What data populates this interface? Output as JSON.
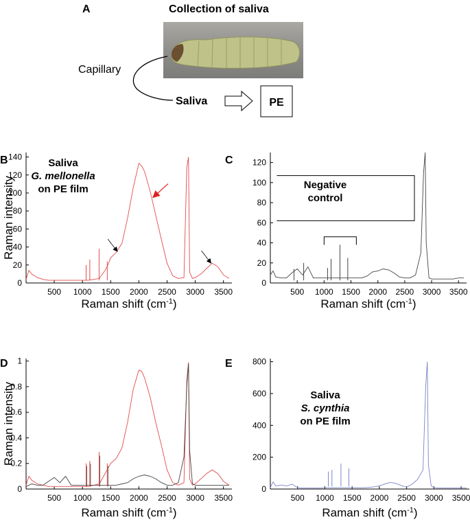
{
  "panel_a": {
    "letter": "A",
    "title": "Collection of saliva",
    "capillary_label": "Capillary",
    "saliva_label": "Saliva",
    "pe_label": "PE",
    "larva_image": "larva-photo"
  },
  "chart_data": [
    {
      "panel": "B",
      "type": "line",
      "ylabel": "Raman intensity",
      "xlabel": "Raman shift (cm",
      "xlabel_sup": "-1",
      "xlabel_end": ")",
      "xlim": [
        0,
        3650
      ],
      "ylim": [
        0,
        145
      ],
      "xticks": [
        500,
        1000,
        1500,
        2000,
        2500,
        3000,
        3500
      ],
      "yticks": [
        0,
        20,
        40,
        60,
        80,
        100,
        120,
        140
      ],
      "annotation": [
        "Saliva",
        "G. mellonella",
        "on PE film"
      ],
      "series": [
        {
          "color": "#e34a4a",
          "x": [
            0,
            50,
            100,
            200,
            300,
            400,
            500,
            600,
            700,
            800,
            900,
            1000,
            1100,
            1200,
            1300,
            1400,
            1450,
            1500,
            1600,
            1700,
            1800,
            1900,
            2000,
            2050,
            2100,
            2200,
            2300,
            2400,
            2500,
            2600,
            2700,
            2800,
            2850,
            2880,
            2900,
            2950,
            3000,
            3100,
            3200,
            3300,
            3400,
            3500,
            3600
          ],
          "y": [
            4,
            14,
            10,
            6,
            4,
            3,
            3,
            3,
            3,
            3,
            3,
            3,
            3,
            4,
            5,
            14,
            20,
            28,
            34,
            44,
            72,
            106,
            133,
            130,
            124,
            102,
            75,
            48,
            22,
            8,
            5,
            6,
            128,
            140,
            12,
            5,
            6,
            10,
            16,
            22,
            18,
            9,
            5
          ]
        }
      ],
      "peaks": [
        {
          "x": 1065,
          "y": 20
        },
        {
          "x": 1130,
          "y": 26
        },
        {
          "x": 1295,
          "y": 38
        },
        {
          "x": 1440,
          "y": 24
        }
      ],
      "arrows": [
        {
          "color": "red",
          "tip_x": 2250,
          "tip_y": 95
        },
        {
          "color": "black",
          "tip_x": 1620,
          "tip_y": 35
        },
        {
          "color": "black",
          "tip_x": 3280,
          "tip_y": 22
        }
      ]
    },
    {
      "panel": "C",
      "type": "line",
      "xlabel": "Raman shift (cm",
      "xlabel_sup": "-1",
      "xlabel_end": ")",
      "xlim": [
        0,
        3650
      ],
      "ylim": [
        0,
        130
      ],
      "xticks": [
        500,
        1000,
        1500,
        2000,
        2500,
        3000,
        3500
      ],
      "yticks": [
        0,
        20,
        40,
        60,
        80,
        100,
        120
      ],
      "annotation": [
        "Negative",
        "control"
      ],
      "series": [
        {
          "color": "#444444",
          "x": [
            0,
            50,
            100,
            200,
            300,
            400,
            500,
            600,
            700,
            800,
            900,
            1000,
            1100,
            1200,
            1300,
            1400,
            1500,
            1600,
            1700,
            1800,
            1900,
            2000,
            2100,
            2200,
            2300,
            2400,
            2500,
            2600,
            2700,
            2800,
            2850,
            2880,
            2900,
            2950,
            3000,
            3100,
            3200,
            3300,
            3400,
            3500,
            3600
          ],
          "y": [
            8,
            12,
            6,
            5,
            5,
            10,
            14,
            8,
            16,
            5,
            5,
            5,
            5,
            5,
            5,
            5,
            5,
            5,
            5,
            7,
            11,
            12,
            14,
            13,
            10,
            6,
            5,
            5,
            8,
            30,
            110,
            130,
            40,
            5,
            4,
            4,
            4,
            4,
            4,
            5,
            5
          ]
        }
      ],
      "peaks": [
        {
          "x": 440,
          "y": 14
        },
        {
          "x": 620,
          "y": 20
        },
        {
          "x": 1065,
          "y": 15
        },
        {
          "x": 1130,
          "y": 24
        },
        {
          "x": 1295,
          "y": 38
        },
        {
          "x": 1440,
          "y": 25
        }
      ],
      "brackets": [
        {
          "x1": 1000,
          "x2": 1600,
          "y": 46,
          "drop": 8
        },
        {
          "x": 2680,
          "y1": 62,
          "y2": 107,
          "tick": 120
        }
      ]
    },
    {
      "panel": "D",
      "type": "line",
      "ylabel": "Raman intensity",
      "xlabel": "Raman shift (cm",
      "xlabel_sup": "-1",
      "xlabel_end": ")",
      "xlim": [
        0,
        3650
      ],
      "ylim": [
        0,
        1.02
      ],
      "xticks": [
        500,
        1000,
        1500,
        2000,
        2500,
        3000,
        3500
      ],
      "yticks": [
        0,
        0.2,
        0.4,
        0.6,
        0.8,
        1
      ],
      "series": [
        {
          "color": "#e34a4a",
          "x": [
            0,
            50,
            100,
            200,
            300,
            400,
            500,
            600,
            700,
            800,
            900,
            1000,
            1100,
            1200,
            1300,
            1400,
            1500,
            1600,
            1700,
            1800,
            1900,
            2000,
            2050,
            2100,
            2200,
            2300,
            2400,
            2500,
            2600,
            2700,
            2800,
            2850,
            2880,
            2900,
            2950,
            3000,
            3100,
            3200,
            3300,
            3400,
            3500,
            3600
          ],
          "y": [
            0.03,
            0.1,
            0.07,
            0.04,
            0.03,
            0.02,
            0.02,
            0.02,
            0.02,
            0.02,
            0.02,
            0.02,
            0.02,
            0.03,
            0.04,
            0.12,
            0.2,
            0.24,
            0.32,
            0.52,
            0.78,
            0.93,
            0.92,
            0.87,
            0.72,
            0.52,
            0.34,
            0.15,
            0.05,
            0.03,
            0.05,
            0.85,
            0.99,
            0.08,
            0.03,
            0.04,
            0.08,
            0.12,
            0.15,
            0.12,
            0.06,
            0.03
          ]
        },
        {
          "color": "#444444",
          "x": [
            0,
            100,
            200,
            300,
            400,
            500,
            600,
            700,
            800,
            900,
            1000,
            1100,
            1200,
            1300,
            1400,
            1500,
            1600,
            1700,
            1800,
            1900,
            2000,
            2100,
            2200,
            2300,
            2400,
            2500,
            2600,
            2700,
            2800,
            2850,
            2880,
            2900,
            2950,
            3000,
            3200,
            3400,
            3600
          ],
          "y": [
            0.02,
            0.04,
            0.03,
            0.03,
            0.06,
            0.09,
            0.05,
            0.1,
            0.03,
            0.03,
            0.03,
            0.03,
            0.03,
            0.03,
            0.03,
            0.03,
            0.03,
            0.04,
            0.05,
            0.08,
            0.1,
            0.11,
            0.1,
            0.08,
            0.05,
            0.03,
            0.03,
            0.05,
            0.25,
            0.8,
            0.98,
            0.3,
            0.04,
            0.03,
            0.03,
            0.03,
            0.03
          ]
        }
      ],
      "peaks": [
        {
          "x": 1065,
          "y": 0.2
        },
        {
          "x": 1130,
          "y": 0.22
        },
        {
          "x": 1295,
          "y": 0.29
        },
        {
          "x": 1440,
          "y": 0.2
        }
      ]
    },
    {
      "panel": "E",
      "type": "line",
      "xlabel": "Raman shift (cm",
      "xlabel_sup": "-1",
      "xlabel_end": ")",
      "xlim": [
        0,
        3650
      ],
      "ylim": [
        0,
        820
      ],
      "xticks": [
        500,
        1000,
        1500,
        2000,
        2500,
        3000,
        3500
      ],
      "yticks": [
        0,
        200,
        400,
        600,
        800
      ],
      "annotation": [
        "Saliva",
        "S. cynthia",
        "on PE film"
      ],
      "series": [
        {
          "color": "#7a84c8",
          "x": [
            0,
            50,
            100,
            200,
            300,
            400,
            500,
            600,
            700,
            800,
            900,
            1000,
            1100,
            1200,
            1300,
            1400,
            1500,
            1600,
            1700,
            1800,
            1900,
            2000,
            2100,
            2200,
            2300,
            2400,
            2500,
            2600,
            2700,
            2800,
            2850,
            2880,
            2900,
            2950,
            3000,
            3100,
            3200,
            3300,
            3400,
            3500,
            3600
          ],
          "y": [
            10,
            45,
            20,
            25,
            20,
            30,
            8,
            6,
            6,
            6,
            6,
            8,
            8,
            8,
            8,
            8,
            8,
            8,
            8,
            10,
            14,
            20,
            32,
            42,
            36,
            22,
            12,
            30,
            60,
            120,
            640,
            800,
            150,
            20,
            8,
            6,
            6,
            6,
            6,
            6,
            6
          ]
        }
      ],
      "peaks": [
        {
          "x": 1065,
          "y": 110
        },
        {
          "x": 1130,
          "y": 120
        },
        {
          "x": 1295,
          "y": 160
        },
        {
          "x": 1440,
          "y": 130
        }
      ]
    }
  ]
}
